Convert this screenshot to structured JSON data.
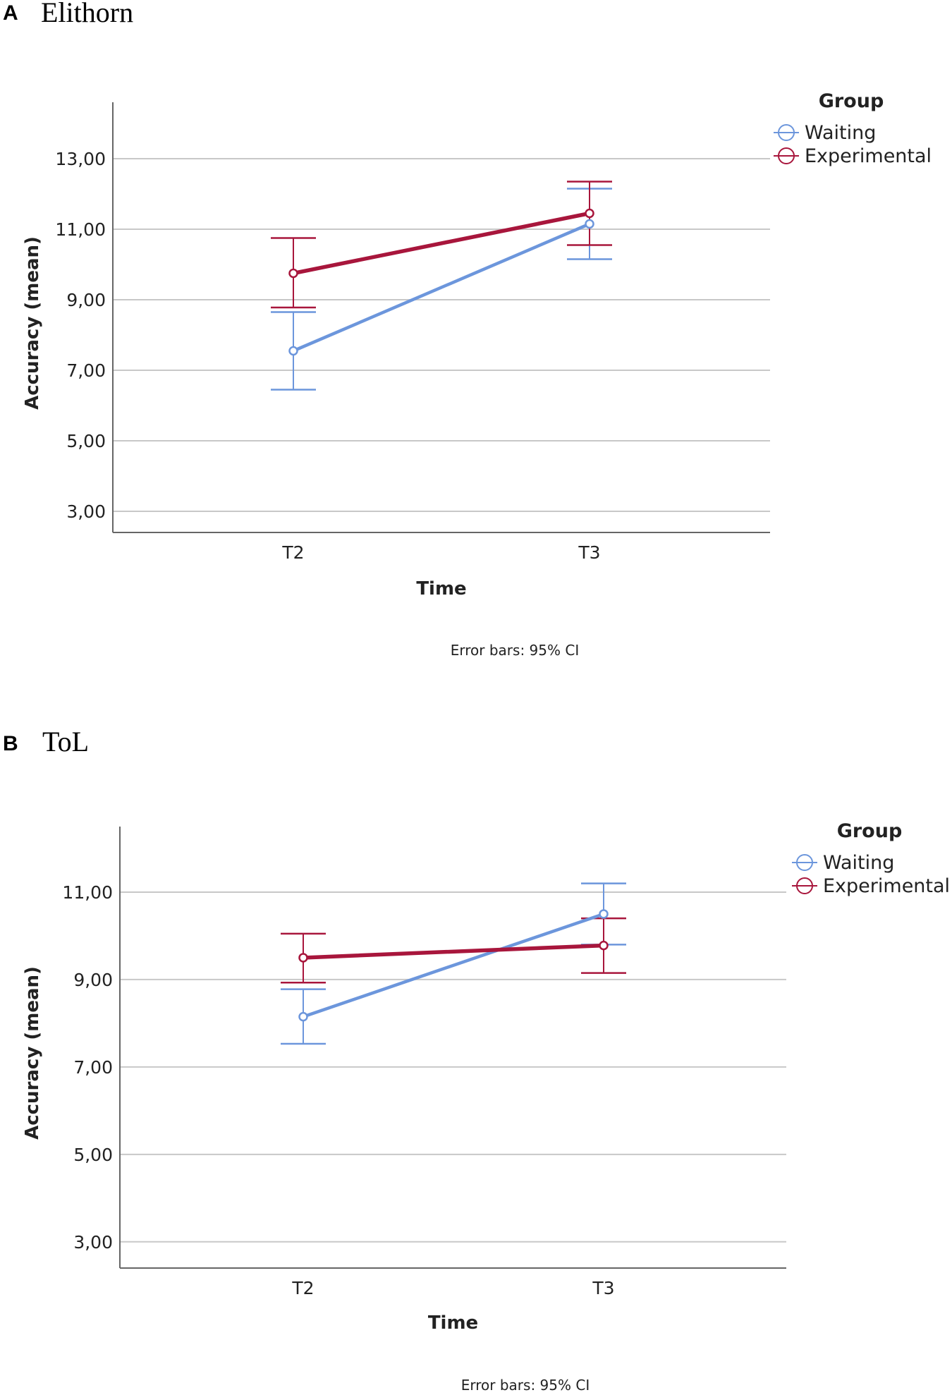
{
  "panels": [
    {
      "letter": "A",
      "title": "Elithorn",
      "footnote": "Error bars: 95% CI"
    },
    {
      "letter": "B",
      "title": "ToL",
      "footnote": "Error bars: 95% CI"
    }
  ],
  "colors": {
    "waiting": "#6c96dc",
    "experimental": "#a8163c",
    "grid": "#c8c8c8",
    "axis": "#666666"
  },
  "chart_data": [
    {
      "type": "line",
      "title": "Elithorn",
      "xlabel": "Time",
      "ylabel": "Accuracy (mean)",
      "categories": [
        "T2",
        "T3"
      ],
      "ylim": [
        2.4,
        14.6
      ],
      "yticks": [
        3,
        5,
        7,
        9,
        11,
        13
      ],
      "ytick_labels": [
        "3,00",
        "5,00",
        "7,00",
        "9,00",
        "11,00",
        "13,00"
      ],
      "legend_title": "Group",
      "legend_position": "top-right",
      "series": [
        {
          "name": "Waiting",
          "values": [
            7.55,
            11.15
          ],
          "ci_low": [
            6.45,
            10.15
          ],
          "ci_high": [
            8.65,
            12.15
          ]
        },
        {
          "name": "Experimental",
          "values": [
            9.75,
            11.45
          ],
          "ci_low": [
            8.78,
            10.55
          ],
          "ci_high": [
            10.75,
            12.35
          ]
        }
      ]
    },
    {
      "type": "line",
      "title": "ToL",
      "xlabel": "Time",
      "ylabel": "Accuracy (mean)",
      "categories": [
        "T2",
        "T3"
      ],
      "ylim": [
        2.4,
        12.5
      ],
      "yticks": [
        3,
        5,
        7,
        9,
        11
      ],
      "ytick_labels": [
        "3,00",
        "5,00",
        "7,00",
        "9,00",
        "11,00"
      ],
      "legend_title": "Group",
      "legend_position": "top-right",
      "series": [
        {
          "name": "Waiting",
          "values": [
            8.15,
            10.5
          ],
          "ci_low": [
            7.53,
            9.8
          ],
          "ci_high": [
            8.78,
            11.2
          ]
        },
        {
          "name": "Experimental",
          "values": [
            9.5,
            9.78
          ],
          "ci_low": [
            8.93,
            9.15
          ],
          "ci_high": [
            10.05,
            10.4
          ]
        }
      ]
    }
  ]
}
